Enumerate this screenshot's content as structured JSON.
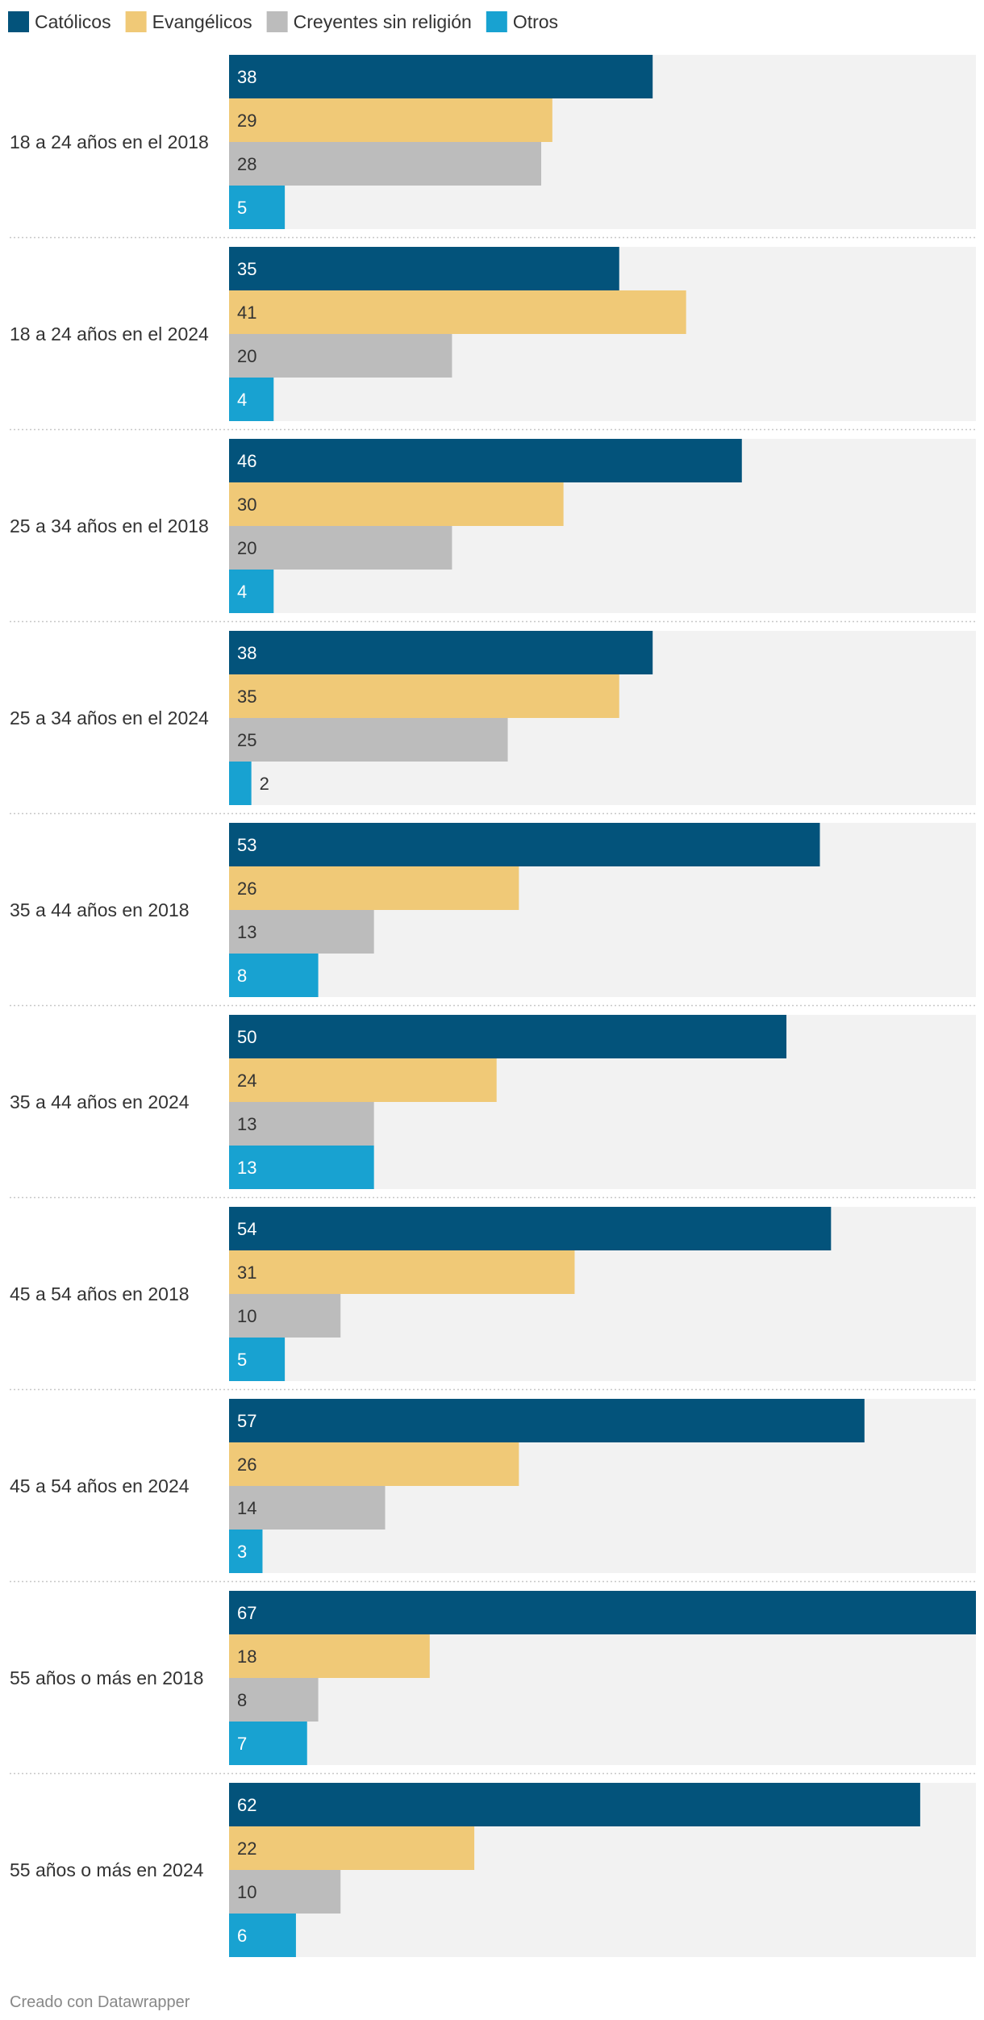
{
  "chart_data": {
    "type": "bar",
    "orientation": "horizontal-grouped",
    "title": "",
    "xlabel": "",
    "ylabel": "",
    "xlim": [
      0,
      67
    ],
    "grid": false,
    "legend_position": "top-left",
    "categories": [
      "18 a 24 años en el 2018",
      "18 a 24 años en el 2024",
      "25 a 34 años en el 2018",
      "25 a 34 años en el 2024",
      "35 a 44 años en 2018",
      "35 a 44 años en 2024",
      "45 a 54 años en 2018",
      "45 a 54 años en 2024",
      "55 años o más en 2018",
      "55 años o más en 2024"
    ],
    "series": [
      {
        "name": "Católicos",
        "color": "#03537b",
        "label_color": "#ffffff",
        "values": [
          38,
          35,
          46,
          38,
          53,
          50,
          54,
          57,
          67,
          62
        ]
      },
      {
        "name": "Evangélicos",
        "color": "#f0c977",
        "label_color": "#333333",
        "values": [
          29,
          41,
          30,
          35,
          26,
          24,
          31,
          26,
          18,
          22
        ]
      },
      {
        "name": "Creyentes sin religión",
        "color": "#bcbcbc",
        "label_color": "#333333",
        "values": [
          28,
          20,
          20,
          25,
          13,
          13,
          10,
          14,
          8,
          10
        ]
      },
      {
        "name": "Otros",
        "color": "#18a2d1",
        "label_color": "#ffffff",
        "values": [
          5,
          4,
          4,
          2,
          8,
          13,
          5,
          3,
          7,
          6
        ]
      }
    ]
  },
  "footer": {
    "credit": "Creado con Datawrapper"
  }
}
